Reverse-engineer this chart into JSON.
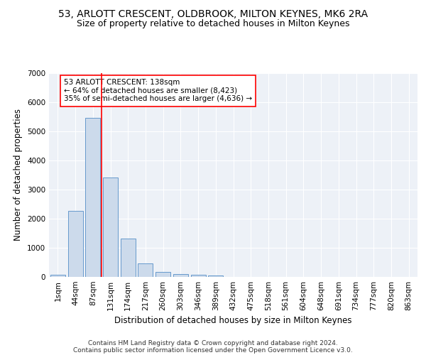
{
  "title": "53, ARLOTT CRESCENT, OLDBROOK, MILTON KEYNES, MK6 2RA",
  "subtitle": "Size of property relative to detached houses in Milton Keynes",
  "xlabel": "Distribution of detached houses by size in Milton Keynes",
  "ylabel": "Number of detached properties",
  "bar_color": "#ccdaeb",
  "bar_edge_color": "#6699cc",
  "categories": [
    "1sqm",
    "44sqm",
    "87sqm",
    "131sqm",
    "174sqm",
    "217sqm",
    "260sqm",
    "303sqm",
    "346sqm",
    "389sqm",
    "432sqm",
    "475sqm",
    "518sqm",
    "561sqm",
    "604sqm",
    "648sqm",
    "691sqm",
    "734sqm",
    "777sqm",
    "820sqm",
    "863sqm"
  ],
  "values": [
    80,
    2270,
    5460,
    3420,
    1310,
    470,
    160,
    100,
    70,
    45,
    0,
    0,
    0,
    0,
    0,
    0,
    0,
    0,
    0,
    0,
    0
  ],
  "ylim": [
    0,
    7000
  ],
  "yticks": [
    0,
    1000,
    2000,
    3000,
    4000,
    5000,
    6000,
    7000
  ],
  "vline_x": 2.5,
  "annotation_title": "53 ARLOTT CRESCENT: 138sqm",
  "annotation_line1": "← 64% of detached houses are smaller (8,423)",
  "annotation_line2": "35% of semi-detached houses are larger (4,636) →",
  "footer_line1": "Contains HM Land Registry data © Crown copyright and database right 2024.",
  "footer_line2": "Contains public sector information licensed under the Open Government Licence v3.0.",
  "background_color": "#edf1f7",
  "grid_color": "#ffffff",
  "title_fontsize": 10,
  "subtitle_fontsize": 9,
  "axis_label_fontsize": 8.5,
  "tick_fontsize": 7.5,
  "annotation_fontsize": 7.5,
  "footer_fontsize": 6.5
}
